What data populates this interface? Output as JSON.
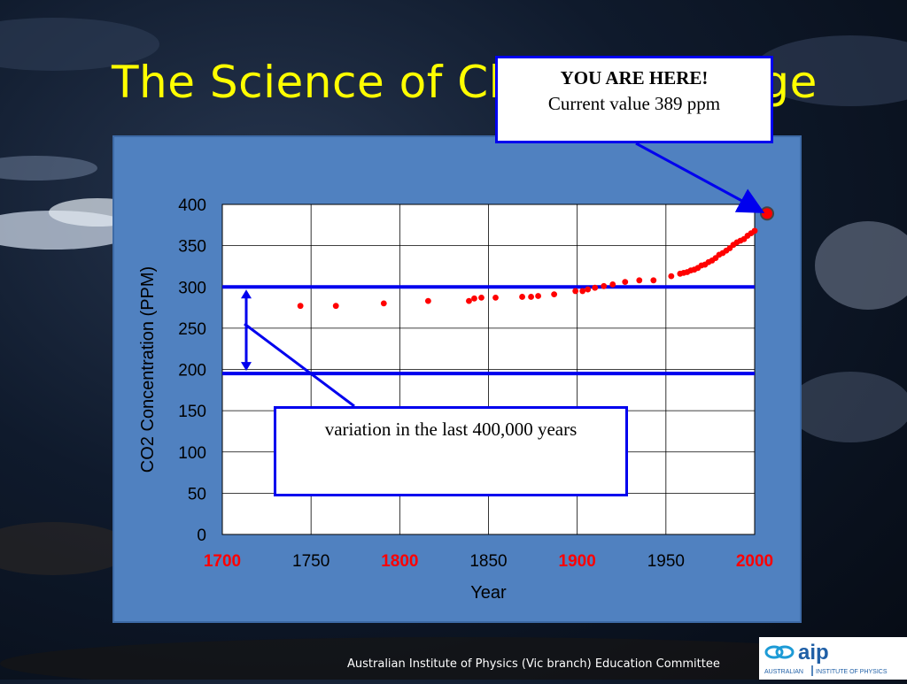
{
  "slide": {
    "title": "The Science of Climate Change",
    "footer": "Australian Institute of Physics (Vic branch) Education Committee",
    "logo": {
      "acronym": "aip",
      "left_text": "AUSTRALIAN",
      "right_text": "INSTITUTE OF PHYSICS"
    }
  },
  "callouts": {
    "here_title": "YOU ARE HERE!",
    "here_body": "Current value 389 ppm",
    "variation": "variation in the last 400,000 years"
  },
  "chart_data": {
    "type": "scatter",
    "xlabel": "Year",
    "ylabel": "CO2 Concentration (PPM)",
    "xlim": [
      1700,
      2000
    ],
    "ylim": [
      0,
      400
    ],
    "xticks": [
      1700,
      1750,
      1800,
      1850,
      1900,
      1950,
      2000
    ],
    "xticks_highlighted": [
      1700,
      1800,
      1900,
      2000
    ],
    "yticks": [
      0,
      50,
      100,
      150,
      200,
      250,
      300,
      350,
      400
    ],
    "grid": true,
    "series": [
      {
        "color": "#ff0000",
        "x": [
          1744,
          1764,
          1791,
          1816,
          1839,
          1842,
          1846,
          1854,
          1869,
          1874,
          1878,
          1887,
          1899,
          1903,
          1906,
          1910,
          1915,
          1920,
          1927,
          1935,
          1943,
          1953,
          1958,
          1960,
          1962,
          1964,
          1966,
          1968,
          1970,
          1972,
          1974,
          1976,
          1978,
          1980,
          1982,
          1984,
          1986,
          1988,
          1990,
          1992,
          1994,
          1996,
          1998,
          2000
        ],
        "y": [
          277,
          277,
          280,
          283,
          283,
          286,
          287,
          287,
          288,
          288,
          289,
          291,
          295,
          295,
          297,
          299,
          301,
          303,
          306,
          308,
          308,
          313,
          316,
          317,
          318,
          320,
          321,
          323,
          326,
          327,
          330,
          332,
          335,
          339,
          341,
          344,
          347,
          351,
          354,
          356,
          358,
          362,
          365,
          368
        ]
      }
    ],
    "current_point": {
      "x": 2007,
      "y": 389
    },
    "reference_lines": [
      {
        "y": 300,
        "color": "#0000ee"
      },
      {
        "y": 195,
        "color": "#0000ee"
      }
    ]
  }
}
